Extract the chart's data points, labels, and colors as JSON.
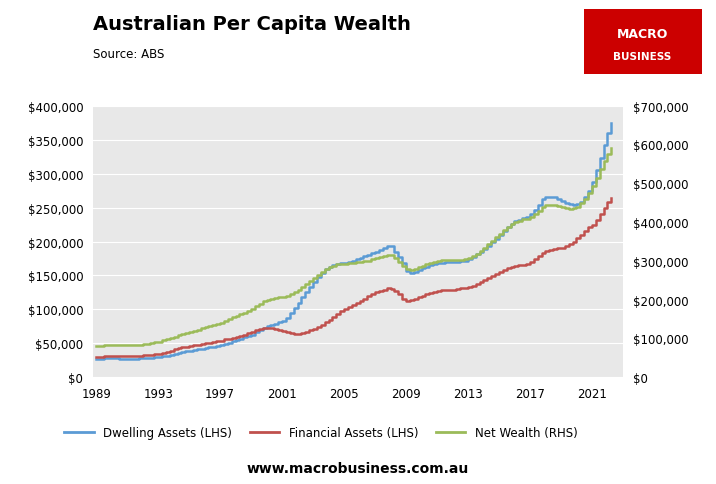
{
  "title": "Australian Per Capita Wealth",
  "subtitle": "Source: ABS",
  "website": "www.macrobusiness.com.au",
  "lhs_ylim": [
    0,
    400000
  ],
  "rhs_ylim": [
    0,
    700000
  ],
  "lhs_yticks": [
    0,
    50000,
    100000,
    150000,
    200000,
    250000,
    300000,
    350000,
    400000
  ],
  "rhs_yticks": [
    0,
    100000,
    200000,
    300000,
    400000,
    500000,
    600000,
    700000
  ],
  "xticks": [
    1989,
    1993,
    1997,
    2001,
    2005,
    2009,
    2013,
    2017,
    2021
  ],
  "xlim": [
    1988.8,
    2023.0
  ],
  "background_color": "#e8e8e8",
  "dwelling_color": "#5b9bd5",
  "financial_color": "#c0504d",
  "netwealth_color": "#9bbb59",
  "legend_labels": [
    "Dwelling Assets (LHS)",
    "Financial Assets (LHS)",
    "Net Wealth (RHS)"
  ],
  "years": [
    1989.0,
    1989.25,
    1989.5,
    1989.75,
    1990.0,
    1990.25,
    1990.5,
    1990.75,
    1991.0,
    1991.25,
    1991.5,
    1991.75,
    1992.0,
    1992.25,
    1992.5,
    1992.75,
    1993.0,
    1993.25,
    1993.5,
    1993.75,
    1994.0,
    1994.25,
    1994.5,
    1994.75,
    1995.0,
    1995.25,
    1995.5,
    1995.75,
    1996.0,
    1996.25,
    1996.5,
    1996.75,
    1997.0,
    1997.25,
    1997.5,
    1997.75,
    1998.0,
    1998.25,
    1998.5,
    1998.75,
    1999.0,
    1999.25,
    1999.5,
    1999.75,
    2000.0,
    2000.25,
    2000.5,
    2000.75,
    2001.0,
    2001.25,
    2001.5,
    2001.75,
    2002.0,
    2002.25,
    2002.5,
    2002.75,
    2003.0,
    2003.25,
    2003.5,
    2003.75,
    2004.0,
    2004.25,
    2004.5,
    2004.75,
    2005.0,
    2005.25,
    2005.5,
    2005.75,
    2006.0,
    2006.25,
    2006.5,
    2006.75,
    2007.0,
    2007.25,
    2007.5,
    2007.75,
    2008.0,
    2008.25,
    2008.5,
    2008.75,
    2009.0,
    2009.25,
    2009.5,
    2009.75,
    2010.0,
    2010.25,
    2010.5,
    2010.75,
    2011.0,
    2011.25,
    2011.5,
    2011.75,
    2012.0,
    2012.25,
    2012.5,
    2012.75,
    2013.0,
    2013.25,
    2013.5,
    2013.75,
    2014.0,
    2014.25,
    2014.5,
    2014.75,
    2015.0,
    2015.25,
    2015.5,
    2015.75,
    2016.0,
    2016.25,
    2016.5,
    2016.75,
    2017.0,
    2017.25,
    2017.5,
    2017.75,
    2018.0,
    2018.25,
    2018.5,
    2018.75,
    2019.0,
    2019.25,
    2019.5,
    2019.75,
    2020.0,
    2020.25,
    2020.5,
    2020.75,
    2021.0,
    2021.25,
    2021.5,
    2021.75,
    2022.0,
    2022.25
  ],
  "dwelling_assets": [
    27000,
    27500,
    28000,
    28500,
    28500,
    28000,
    27500,
    27000,
    27000,
    27000,
    27500,
    28000,
    28000,
    28500,
    29000,
    29500,
    30000,
    31000,
    32000,
    33000,
    35000,
    36000,
    37000,
    38000,
    39000,
    40000,
    41000,
    42000,
    43000,
    44000,
    45000,
    46000,
    47000,
    49000,
    51000,
    53000,
    55000,
    57000,
    59000,
    61000,
    63000,
    66000,
    69000,
    72000,
    75000,
    77000,
    79000,
    81000,
    83000,
    88000,
    95000,
    102000,
    110000,
    118000,
    126000,
    133000,
    140000,
    147000,
    154000,
    160000,
    163000,
    165000,
    167000,
    168000,
    168000,
    170000,
    172000,
    174000,
    176000,
    178000,
    180000,
    183000,
    185000,
    188000,
    191000,
    193000,
    193000,
    185000,
    177000,
    168000,
    157000,
    153000,
    155000,
    158000,
    161000,
    163000,
    165000,
    167000,
    168000,
    169000,
    170000,
    170000,
    170000,
    170000,
    171000,
    172000,
    174000,
    177000,
    181000,
    185000,
    189000,
    194000,
    199000,
    204000,
    210000,
    216000,
    221000,
    226000,
    230000,
    232000,
    234000,
    236000,
    240000,
    247000,
    254000,
    262000,
    265000,
    266000,
    265000,
    263000,
    260000,
    257000,
    255000,
    254000,
    255000,
    258000,
    265000,
    275000,
    288000,
    305000,
    323000,
    342000,
    360000,
    374000
  ],
  "financial_assets": [
    30000,
    30500,
    31000,
    31500,
    32000,
    32000,
    31500,
    31000,
    31000,
    31000,
    31500,
    32000,
    32500,
    33000,
    33500,
    34000,
    35000,
    36000,
    37500,
    39000,
    41000,
    42500,
    44000,
    45000,
    46000,
    47000,
    48000,
    49000,
    50000,
    51000,
    52000,
    53000,
    54000,
    56000,
    57000,
    58000,
    59000,
    61000,
    63000,
    65000,
    67000,
    69000,
    71000,
    73000,
    73000,
    72000,
    71000,
    70000,
    68000,
    66000,
    65000,
    64000,
    64000,
    65000,
    67000,
    69000,
    71000,
    74000,
    77000,
    81000,
    85000,
    89000,
    93000,
    97000,
    100000,
    103000,
    106000,
    109000,
    112000,
    116000,
    120000,
    123000,
    125000,
    127000,
    129000,
    131000,
    130000,
    127000,
    122000,
    116000,
    113000,
    114000,
    116000,
    118000,
    120000,
    122000,
    124000,
    126000,
    127000,
    128000,
    129000,
    129000,
    129000,
    130000,
    131000,
    132000,
    133000,
    135000,
    137000,
    140000,
    143000,
    146000,
    149000,
    152000,
    155000,
    158000,
    161000,
    163000,
    164000,
    165000,
    166000,
    167000,
    170000,
    174000,
    178000,
    183000,
    186000,
    188000,
    189000,
    190000,
    191000,
    193000,
    196000,
    200000,
    205000,
    210000,
    216000,
    221000,
    225000,
    231000,
    240000,
    250000,
    258000,
    264000
  ],
  "net_wealth": [
    80000,
    81000,
    82000,
    83000,
    83000,
    83000,
    82000,
    82000,
    82000,
    82000,
    83000,
    84000,
    85000,
    86000,
    88000,
    90000,
    92000,
    95000,
    98000,
    101000,
    105000,
    108000,
    111000,
    114000,
    117000,
    120000,
    123000,
    126000,
    129000,
    132000,
    135000,
    138000,
    141000,
    146000,
    150000,
    155000,
    159000,
    163000,
    167000,
    172000,
    177000,
    183000,
    190000,
    196000,
    200000,
    203000,
    205000,
    207000,
    208000,
    210000,
    214000,
    219000,
    225000,
    232000,
    240000,
    248000,
    256000,
    264000,
    272000,
    279000,
    284000,
    288000,
    291000,
    293000,
    293000,
    294000,
    295000,
    296000,
    297000,
    299000,
    301000,
    304000,
    307000,
    310000,
    313000,
    315000,
    314000,
    308000,
    298000,
    287000,
    278000,
    276000,
    279000,
    283000,
    287000,
    291000,
    295000,
    298000,
    300000,
    302000,
    303000,
    303000,
    302000,
    302000,
    303000,
    305000,
    308000,
    313000,
    319000,
    326000,
    334000,
    343000,
    352000,
    361000,
    370000,
    379000,
    387000,
    394000,
    400000,
    404000,
    407000,
    409000,
    414000,
    421000,
    429000,
    438000,
    443000,
    445000,
    444000,
    441000,
    438000,
    436000,
    435000,
    436000,
    440000,
    448000,
    460000,
    475000,
    493000,
    514000,
    537000,
    558000,
    576000,
    590000
  ]
}
